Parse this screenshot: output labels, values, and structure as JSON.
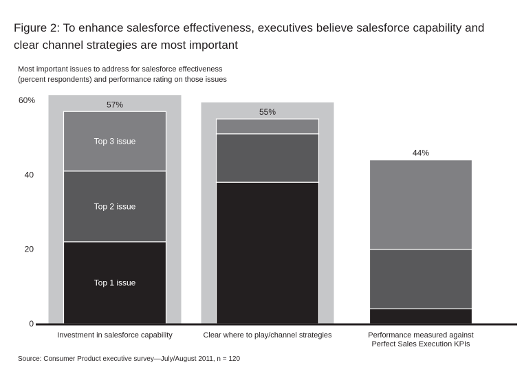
{
  "title_line1": "Figure 2: To enhance salesforce effectiveness, executives believe salesforce capability and",
  "title_line2": "clear channel strategies are most important",
  "subtitle_line1": "Most important issues to address for salesforce effectiveness",
  "subtitle_line2": "(percent respondents) and performance rating on those issues",
  "source": "Source: Consumer Product executive survey—July/August 2011, n = 120",
  "colors": {
    "background_box": "#c6c7c9",
    "top3": "#808083",
    "top2": "#59595b",
    "top1": "#231f20"
  },
  "chart_data": {
    "type": "bar",
    "stacked": true,
    "ylim": [
      0,
      60
    ],
    "yticks": [
      "0",
      "20",
      "40",
      "60%"
    ],
    "ytick_values": [
      0,
      20,
      40,
      60
    ],
    "categories": [
      "Investment in salesforce capability",
      "Clear where to play/channel strategies",
      "Performance measured against\nPerfect Sales Execution KPIs"
    ],
    "totals": [
      "57%",
      "55%",
      "44%"
    ],
    "highlighted": [
      true,
      true,
      false
    ],
    "series": [
      {
        "name": "Top 1 issue",
        "values": [
          22,
          38,
          4
        ]
      },
      {
        "name": "Top 2 issue",
        "values": [
          19,
          13,
          16
        ]
      },
      {
        "name": "Top 3 issue",
        "values": [
          16,
          4,
          24
        ]
      }
    ]
  }
}
